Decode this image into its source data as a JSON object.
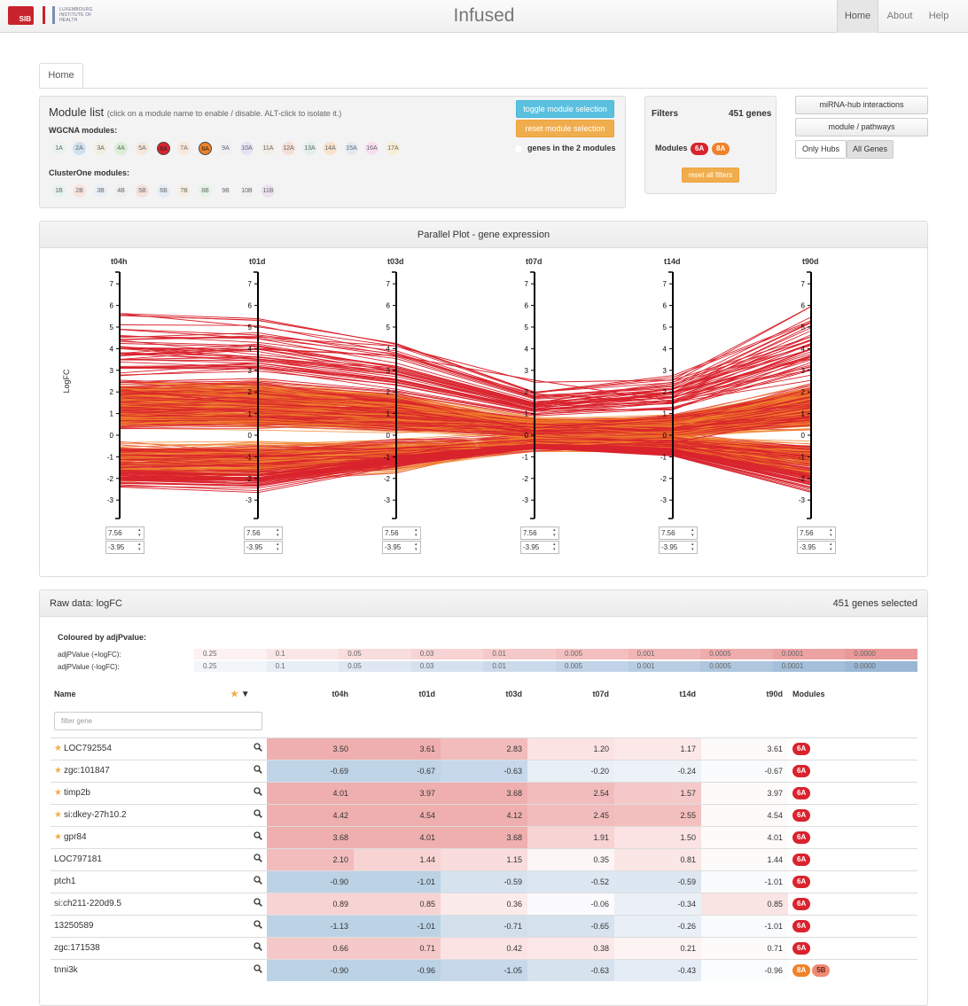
{
  "nav": {
    "brand_sib": "SIB",
    "brand_lih": "LUXEMBOURG INSTITUTE OF HEALTH",
    "title": "Infused",
    "items": [
      {
        "label": "Home",
        "active": true
      },
      {
        "label": "About",
        "active": false
      },
      {
        "label": "Help",
        "active": false
      }
    ]
  },
  "tabs": [
    {
      "label": "Home",
      "active": true
    }
  ],
  "module_list": {
    "title": "Module list",
    "hint": "(click on a module name to enable / disable. ALT-click to isolate it.)",
    "wgcna_label": "WGCNA modules:",
    "wgcna": [
      "1A",
      "2A",
      "3A",
      "4A",
      "5A",
      "6A",
      "7A",
      "8A",
      "9A",
      "10A",
      "11A",
      "12A",
      "13A",
      "14A",
      "15A",
      "16A",
      "17A"
    ],
    "wgcna_colors": [
      "#e9f2ed",
      "#cfe0ef",
      "#f1efe2",
      "#dbefd6",
      "#f5e7de",
      "#d9232d",
      "#f7e9dd",
      "#f0822a",
      "#efeef6",
      "#e5e3f3",
      "#f4eee6",
      "#f6ded6",
      "#dff0ec",
      "#f7e2cc",
      "#e1e9f4",
      "#f7dff1",
      "#f6eed7"
    ],
    "wgcna_selected": [
      "6A",
      "8A"
    ],
    "clusterone_label": "ClusterOne modules:",
    "clusterone": [
      "1B",
      "2B",
      "3B",
      "4B",
      "5B",
      "6B",
      "7B",
      "8B",
      "9B",
      "10B",
      "11B"
    ],
    "clusterone_colors": [
      "#e4f3ec",
      "#f7e4de",
      "#e9eef7",
      "#efefef",
      "#f5e2dc",
      "#e4ecf6",
      "#f6efe2",
      "#e4f3e6",
      "#f3f3f3",
      "#f0f0f0",
      "#ece2f1"
    ],
    "btn_toggle": "toggle module selection",
    "btn_reset": "reset module selection",
    "genes_in_modules": "genes in the 2 modules"
  },
  "filters": {
    "title": "Filters",
    "count": "451 genes",
    "modules_label": "Modules",
    "modules": [
      "6A",
      "8A"
    ],
    "reset_all": "reset all filters"
  },
  "side_buttons": {
    "mirna": "miRNA-hub interactions",
    "pathways": "module / pathways",
    "only_hubs": "Only Hubs",
    "all_genes": "All Genes"
  },
  "parallel": {
    "title": "Parallel Plot - gene expression",
    "ylabel": "LogFC",
    "axes": [
      "t04h",
      "t01d",
      "t03d",
      "t07d",
      "t14d",
      "t90d"
    ],
    "max_input": "7.56",
    "min_input": "-3.95"
  },
  "chart_data": {
    "type": "line",
    "title": "Parallel Plot - gene expression",
    "x": [
      "t04h",
      "t01d",
      "t03d",
      "t07d",
      "t14d",
      "t90d"
    ],
    "ylabel": "LogFC",
    "ylim": [
      -3.95,
      7.56
    ],
    "yticks": [
      7,
      6,
      5,
      4,
      3,
      2,
      1,
      0,
      -1,
      -2,
      -3
    ],
    "series": [
      {
        "values": [
          3.5,
          3.61,
          2.83,
          1.2,
          1.17,
          3.61
        ]
      },
      {
        "values": [
          -0.69,
          -0.67,
          -0.63,
          -0.2,
          -0.24,
          -0.67
        ]
      },
      {
        "values": [
          4.01,
          3.97,
          3.68,
          2.54,
          1.57,
          3.97
        ]
      },
      {
        "values": [
          4.42,
          4.54,
          4.12,
          2.45,
          2.55,
          4.54
        ]
      },
      {
        "values": [
          3.68,
          4.01,
          3.68,
          1.91,
          1.5,
          4.01
        ]
      },
      {
        "values": [
          2.1,
          1.44,
          1.15,
          0.35,
          0.81,
          1.44
        ]
      },
      {
        "values": [
          -0.9,
          -1.01,
          -0.59,
          -0.52,
          -0.59,
          -1.01
        ]
      },
      {
        "values": [
          0.89,
          0.85,
          0.36,
          -0.06,
          -0.34,
          0.85
        ]
      },
      {
        "values": [
          -1.13,
          -1.01,
          -0.71,
          -0.65,
          -0.26,
          -1.01
        ]
      },
      {
        "values": [
          0.66,
          0.71,
          0.42,
          0.38,
          0.21,
          0.71
        ]
      },
      {
        "values": [
          -0.9,
          -0.96,
          -1.05,
          -0.63,
          -0.43,
          -0.96
        ]
      }
    ],
    "colors": {
      "module_6A": "#d9232d",
      "module_8A": "#f0822a"
    }
  },
  "raw": {
    "title": "Raw data: logFC",
    "selected": "451 genes selected",
    "coloured_by": "Coloured by adjPvalue:",
    "legend_pos_label": "adjPValue (+logFC):",
    "legend_neg_label": "adjPValue (-logFC):",
    "legend_values": [
      "0.25",
      "0.1",
      "0.05",
      "0.03",
      "0.01",
      "0.005",
      "0.001",
      "0.0005",
      "0.0001",
      "0.0000"
    ],
    "legend_pos_colors": [
      "#fdf1f1",
      "#fbe6e6",
      "#f9dcdc",
      "#f7d3d3",
      "#f5c9c9",
      "#f3bfbf",
      "#f1b5b5",
      "#efacac",
      "#eda2a2",
      "#eb9898"
    ],
    "legend_neg_colors": [
      "#f2f5fa",
      "#e8eef6",
      "#dfe7f2",
      "#d5e1ee",
      "#cbdaea",
      "#c1d3e6",
      "#b8cde2",
      "#aec6de",
      "#a4bfda",
      "#9ab8d6"
    ],
    "columns": {
      "name": "Name",
      "times": [
        "t04h",
        "t01d",
        "t03d",
        "t07d",
        "t14d",
        "t90d"
      ],
      "modules": "Modules"
    },
    "filter_placeholder": "filter gene",
    "rows": [
      {
        "name": "LOC792554",
        "star": true,
        "values": [
          "3.50",
          "3.61",
          "2.83",
          "1.20",
          "1.17",
          "3.61"
        ],
        "colors": [
          "#efafaf",
          "#efafaf",
          "#f2bcbc",
          "#fbe3e3",
          "#fce8e8",
          "#fdfafa"
        ],
        "modules": [
          {
            "l": "6A",
            "c": "red"
          }
        ]
      },
      {
        "name": "zgc:101847",
        "star": true,
        "values": [
          "-0.69",
          "-0.67",
          "-0.63",
          "-0.20",
          "-0.24",
          "-0.67"
        ],
        "colors": [
          "#bfd4e6",
          "#bfd4e6",
          "#c7d8ea",
          "#e9eff6",
          "#edf2f8",
          "#f9fbfd"
        ],
        "modules": [
          {
            "l": "6A",
            "c": "red"
          }
        ]
      },
      {
        "name": "timp2b",
        "star": true,
        "values": [
          "4.01",
          "3.97",
          "3.68",
          "2.54",
          "1.57",
          "3.97"
        ],
        "colors": [
          "#efafaf",
          "#efafaf",
          "#efafaf",
          "#f2bcbc",
          "#f5c9c9",
          "#fdfafa"
        ],
        "modules": [
          {
            "l": "6A",
            "c": "red"
          }
        ]
      },
      {
        "name": "si:dkey-27h10.2",
        "star": true,
        "values": [
          "4.42",
          "4.54",
          "4.12",
          "2.45",
          "2.55",
          "4.54"
        ],
        "colors": [
          "#efafaf",
          "#efafaf",
          "#efafaf",
          "#f2bcbc",
          "#f3bfbf",
          "#fdfafa"
        ],
        "modules": [
          {
            "l": "6A",
            "c": "red"
          }
        ]
      },
      {
        "name": "gpr84",
        "star": true,
        "values": [
          "3.68",
          "4.01",
          "3.68",
          "1.91",
          "1.50",
          "4.01"
        ],
        "colors": [
          "#efafaf",
          "#efafaf",
          "#efafaf",
          "#f7d3d3",
          "#fbe3e3",
          "#fdfafa"
        ],
        "modules": [
          {
            "l": "6A",
            "c": "red"
          }
        ]
      },
      {
        "name": "LOC797181",
        "star": false,
        "values": [
          "2.10",
          "1.44",
          "1.15",
          "0.35",
          "0.81",
          "1.44"
        ],
        "colors": [
          "#f2bcbc",
          "#f7d3d3",
          "#f9dcdc",
          "#fdf6f6",
          "#fbe6e6",
          "#fdfafa"
        ],
        "modules": [
          {
            "l": "6A",
            "c": "red"
          }
        ]
      },
      {
        "name": "ptch1",
        "star": false,
        "values": [
          "-0.90",
          "-1.01",
          "-0.59",
          "-0.52",
          "-0.59",
          "-1.01"
        ],
        "colors": [
          "#bcd2e5",
          "#bcd2e5",
          "#d6e2ee",
          "#dce7f1",
          "#dce7f1",
          "#f9fbfd"
        ],
        "modules": [
          {
            "l": "6A",
            "c": "red"
          }
        ]
      },
      {
        "name": "si:ch211-220d9.5",
        "star": false,
        "values": [
          "0.89",
          "0.85",
          "0.36",
          "-0.06",
          "-0.34",
          "0.85"
        ],
        "colors": [
          "#f7d3d3",
          "#f7d3d3",
          "#fcebeb",
          "#fbfbfd",
          "#ebf0f6",
          "#f9e3e3"
        ],
        "modules": [
          {
            "l": "6A",
            "c": "red"
          }
        ]
      },
      {
        "name": "13250589",
        "star": false,
        "values": [
          "-1.13",
          "-1.01",
          "-0.71",
          "-0.65",
          "-0.26",
          "-1.01"
        ],
        "colors": [
          "#bcd2e5",
          "#bcd2e5",
          "#d3e0ec",
          "#d6e2ee",
          "#e9eff6",
          "#f9fbfd"
        ],
        "modules": [
          {
            "l": "6A",
            "c": "red"
          }
        ]
      },
      {
        "name": "zgc:171538",
        "star": false,
        "values": [
          "0.66",
          "0.71",
          "0.42",
          "0.38",
          "0.21",
          "0.71"
        ],
        "colors": [
          "#f5c9c9",
          "#f5c9c9",
          "#fbe3e3",
          "#fce8e8",
          "#fdf3f3",
          "#fdfafa"
        ],
        "modules": [
          {
            "l": "6A",
            "c": "red"
          }
        ]
      },
      {
        "name": "tnni3k",
        "star": false,
        "values": [
          "-0.90",
          "-0.96",
          "-1.05",
          "-0.63",
          "-0.43",
          "-0.96"
        ],
        "colors": [
          "#bcd2e5",
          "#bcd2e5",
          "#c7d8ea",
          "#d6e2ee",
          "#e4ecf5",
          "#fbfcfd"
        ],
        "modules": [
          {
            "l": "8A",
            "c": "orange"
          },
          {
            "l": "5B",
            "c": "salmon"
          }
        ]
      }
    ]
  }
}
